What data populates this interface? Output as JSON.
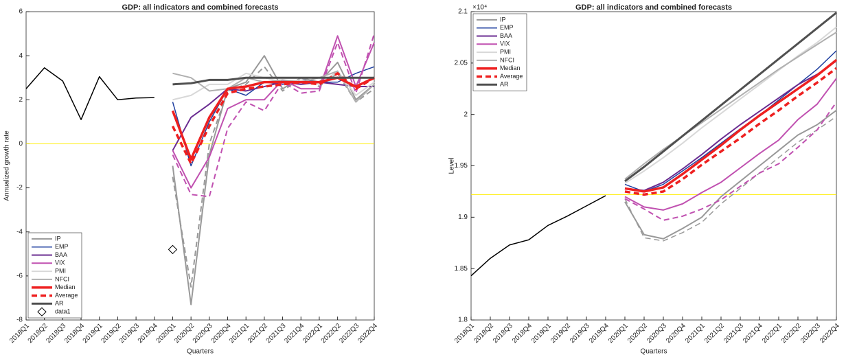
{
  "chart_data": [
    {
      "type": "line",
      "title": "GDP: all indicators and combined forecasts",
      "xlabel": "Quarters",
      "ylabel": "Annualized growth rate",
      "categories": [
        "2018Q1",
        "2018Q2",
        "2018Q3",
        "2018Q4",
        "2019Q1",
        "2019Q2",
        "2019Q3",
        "2019Q4",
        "2020Q1",
        "2020Q2",
        "2020Q3",
        "2020Q4",
        "2021Q1",
        "2021Q2",
        "2021Q3",
        "2021Q4",
        "2022Q1",
        "2022Q2",
        "2022Q3",
        "2022Q4"
      ],
      "ylim": [
        -8,
        6
      ],
      "yticks": [
        -8,
        -6,
        -4,
        -2,
        0,
        2,
        4,
        6
      ],
      "reference_line": 0,
      "reference_color": "#ffee00",
      "legend": "lower left",
      "series": [
        {
          "color": "#000000",
          "width": 1.5,
          "values": [
            2.5,
            3.45,
            2.85,
            1.1,
            3.05,
            2.0,
            2.08,
            2.1,
            null,
            null,
            null,
            null,
            null,
            null,
            null,
            null,
            null,
            null,
            null,
            null
          ]
        },
        {
          "name": "IP",
          "color": "#999999",
          "width": 2,
          "values": [
            null,
            null,
            null,
            null,
            null,
            null,
            null,
            null,
            -1.0,
            -7.3,
            -0.5,
            2.5,
            2.8,
            4.0,
            2.5,
            3.0,
            2.8,
            3.7,
            2.0,
            2.7
          ]
        },
        {
          "color": "#999999",
          "width": 2,
          "dash": true,
          "values": [
            null,
            null,
            null,
            null,
            null,
            null,
            null,
            null,
            -1.5,
            -6.5,
            0.0,
            2.4,
            2.7,
            3.5,
            2.4,
            3.0,
            2.6,
            3.2,
            1.9,
            2.5
          ]
        },
        {
          "name": "EMP",
          "color": "#2040a0",
          "width": 1.5,
          "values": [
            null,
            null,
            null,
            null,
            null,
            null,
            null,
            null,
            1.9,
            -1.0,
            1.0,
            2.5,
            2.2,
            2.8,
            2.7,
            2.9,
            2.8,
            2.8,
            3.2,
            3.5
          ]
        },
        {
          "name": "BAA",
          "color": "#6a2c91",
          "width": 2,
          "values": [
            null,
            null,
            null,
            null,
            null,
            null,
            null,
            null,
            -0.3,
            1.2,
            1.8,
            2.5,
            2.4,
            2.6,
            2.8,
            2.7,
            2.8,
            2.7,
            2.6,
            2.6
          ]
        },
        {
          "name": "VIX",
          "color": "#c050b0",
          "width": 2,
          "values": [
            null,
            null,
            null,
            null,
            null,
            null,
            null,
            null,
            -0.3,
            -2.0,
            -0.6,
            1.6,
            2.0,
            2.0,
            2.9,
            2.5,
            2.5,
            4.9,
            2.6,
            4.6
          ]
        },
        {
          "color": "#c050b0",
          "width": 2,
          "dash": true,
          "values": [
            null,
            null,
            null,
            null,
            null,
            null,
            null,
            null,
            -0.5,
            -2.3,
            -2.4,
            0.7,
            1.9,
            1.5,
            2.8,
            2.3,
            2.4,
            4.6,
            2.3,
            5.0
          ]
        },
        {
          "name": "PMI",
          "color": "#d8d8d8",
          "width": 2,
          "values": [
            null,
            null,
            null,
            null,
            null,
            null,
            null,
            null,
            2.0,
            2.2,
            2.7,
            2.7,
            3.2,
            3.0,
            2.8,
            2.9,
            2.7,
            3.3,
            2.2,
            2.8
          ]
        },
        {
          "name": "NFCI",
          "color": "#b0b0b0",
          "width": 2,
          "values": [
            null,
            null,
            null,
            null,
            null,
            null,
            null,
            null,
            3.2,
            3.0,
            2.4,
            2.5,
            3.0,
            2.8,
            2.9,
            2.8,
            3.0,
            3.3,
            1.9,
            2.7
          ]
        },
        {
          "name": "Median",
          "color": "#ee2020",
          "width": 3.5,
          "values": [
            null,
            null,
            null,
            null,
            null,
            null,
            null,
            null,
            1.5,
            -0.7,
            1.2,
            2.5,
            2.6,
            2.8,
            2.8,
            2.8,
            2.8,
            3.0,
            2.6,
            3.0
          ]
        },
        {
          "name": "Average",
          "color": "#ee2020",
          "width": 3.5,
          "dash": true,
          "values": [
            null,
            null,
            null,
            null,
            null,
            null,
            null,
            null,
            0.8,
            -0.9,
            0.8,
            2.3,
            2.5,
            2.6,
            2.7,
            2.8,
            2.7,
            3.2,
            2.5,
            3.0
          ]
        },
        {
          "name": "AR",
          "color": "#505050",
          "width": 3,
          "values": [
            null,
            null,
            null,
            null,
            null,
            null,
            null,
            null,
            2.7,
            2.75,
            2.9,
            2.9,
            3.0,
            3.0,
            3.0,
            3.0,
            3.0,
            3.0,
            3.0,
            3.0
          ]
        },
        {
          "name": "data1",
          "color": "#000000",
          "marker": "diamond",
          "values": [
            null,
            null,
            null,
            null,
            null,
            null,
            null,
            null,
            -4.8,
            null,
            null,
            null,
            null,
            null,
            null,
            null,
            null,
            null,
            null,
            null
          ]
        }
      ]
    },
    {
      "type": "line",
      "title": "GDP: all indicators and combined forecasts",
      "xlabel": "Quarters",
      "ylabel": "Level",
      "y_exponent": "×10⁴",
      "categories": [
        "2018Q1",
        "2018Q2",
        "2018Q3",
        "2018Q4",
        "2019Q1",
        "2019Q2",
        "2019Q3",
        "2019Q4",
        "2020Q1",
        "2020Q2",
        "2020Q3",
        "2020Q4",
        "2021Q1",
        "2021Q2",
        "2021Q3",
        "2021Q4",
        "2022Q1",
        "2022Q2",
        "2022Q3",
        "2022Q4"
      ],
      "ylim": [
        1.8,
        2.1
      ],
      "yticks": [
        1.8,
        1.85,
        1.9,
        1.95,
        2,
        2.05,
        2.1
      ],
      "reference_line": 1.922,
      "reference_color": "#ffee00",
      "legend": "upper left",
      "series": [
        {
          "color": "#000000",
          "width": 1.5,
          "values": [
            1.843,
            1.86,
            1.873,
            1.878,
            1.892,
            1.901,
            1.911,
            1.921,
            null,
            null,
            null,
            null,
            null,
            null,
            null,
            null,
            null,
            null,
            null,
            null
          ]
        },
        {
          "name": "IP",
          "color": "#999999",
          "width": 2,
          "values": [
            null,
            null,
            null,
            null,
            null,
            null,
            null,
            null,
            1.915,
            1.883,
            1.879,
            1.889,
            1.9,
            1.92,
            1.935,
            1.95,
            1.965,
            1.98,
            1.99,
            2.004
          ]
        },
        {
          "color": "#999999",
          "width": 1.5,
          "dash": true,
          "values": [
            null,
            null,
            null,
            null,
            null,
            null,
            null,
            null,
            1.918,
            1.88,
            1.877,
            1.885,
            1.895,
            1.913,
            1.928,
            1.943,
            1.958,
            1.973,
            1.985,
            1.998
          ]
        },
        {
          "name": "EMP",
          "color": "#2040a0",
          "width": 1.5,
          "values": [
            null,
            null,
            null,
            null,
            null,
            null,
            null,
            null,
            1.932,
            1.925,
            1.932,
            1.945,
            1.958,
            1.972,
            1.986,
            1.999,
            2.014,
            2.029,
            2.044,
            2.062
          ]
        },
        {
          "name": "BAA",
          "color": "#6a2c91",
          "width": 2,
          "values": [
            null,
            null,
            null,
            null,
            null,
            null,
            null,
            null,
            1.928,
            1.926,
            1.934,
            1.947,
            1.961,
            1.976,
            1.99,
            2.003,
            2.016,
            2.029,
            2.039,
            2.052
          ]
        },
        {
          "name": "VIX",
          "color": "#c050b0",
          "width": 2,
          "values": [
            null,
            null,
            null,
            null,
            null,
            null,
            null,
            null,
            1.92,
            1.91,
            1.907,
            1.913,
            1.924,
            1.934,
            1.948,
            1.962,
            1.975,
            1.995,
            2.01,
            2.035
          ]
        },
        {
          "color": "#c050b0",
          "width": 2,
          "dash": true,
          "values": [
            null,
            null,
            null,
            null,
            null,
            null,
            null,
            null,
            1.918,
            1.908,
            1.897,
            1.901,
            1.908,
            1.917,
            1.93,
            1.943,
            1.952,
            1.968,
            1.985,
            2.012
          ]
        },
        {
          "name": "PMI",
          "color": "#d8d8d8",
          "width": 2,
          "values": [
            null,
            null,
            null,
            null,
            null,
            null,
            null,
            null,
            1.933,
            1.945,
            1.958,
            1.972,
            1.987,
            2.001,
            2.015,
            2.029,
            2.043,
            2.057,
            2.07,
            2.085
          ]
        },
        {
          "name": "NFCI",
          "color": "#b0b0b0",
          "width": 2,
          "values": [
            null,
            null,
            null,
            null,
            null,
            null,
            null,
            null,
            1.937,
            1.952,
            1.966,
            1.979,
            1.992,
            2.005,
            2.018,
            2.031,
            2.044,
            2.056,
            2.068,
            2.08
          ]
        },
        {
          "name": "Median",
          "color": "#ee2020",
          "width": 3.5,
          "values": [
            null,
            null,
            null,
            null,
            null,
            null,
            null,
            null,
            1.928,
            1.925,
            1.929,
            1.942,
            1.956,
            1.97,
            1.985,
            1.999,
            2.012,
            2.025,
            2.038,
            2.053
          ]
        },
        {
          "name": "Average",
          "color": "#ee2020",
          "width": 3.5,
          "dash": true,
          "values": [
            null,
            null,
            null,
            null,
            null,
            null,
            null,
            null,
            1.925,
            1.922,
            1.925,
            1.937,
            1.951,
            1.964,
            1.977,
            1.991,
            2.004,
            2.018,
            2.031,
            2.045
          ]
        },
        {
          "name": "AR",
          "color": "#505050",
          "width": 3,
          "values": [
            null,
            null,
            null,
            null,
            null,
            null,
            null,
            null,
            1.935,
            1.949,
            1.964,
            1.979,
            1.994,
            2.009,
            2.024,
            2.039,
            2.054,
            2.069,
            2.084,
            2.099
          ]
        }
      ]
    }
  ]
}
